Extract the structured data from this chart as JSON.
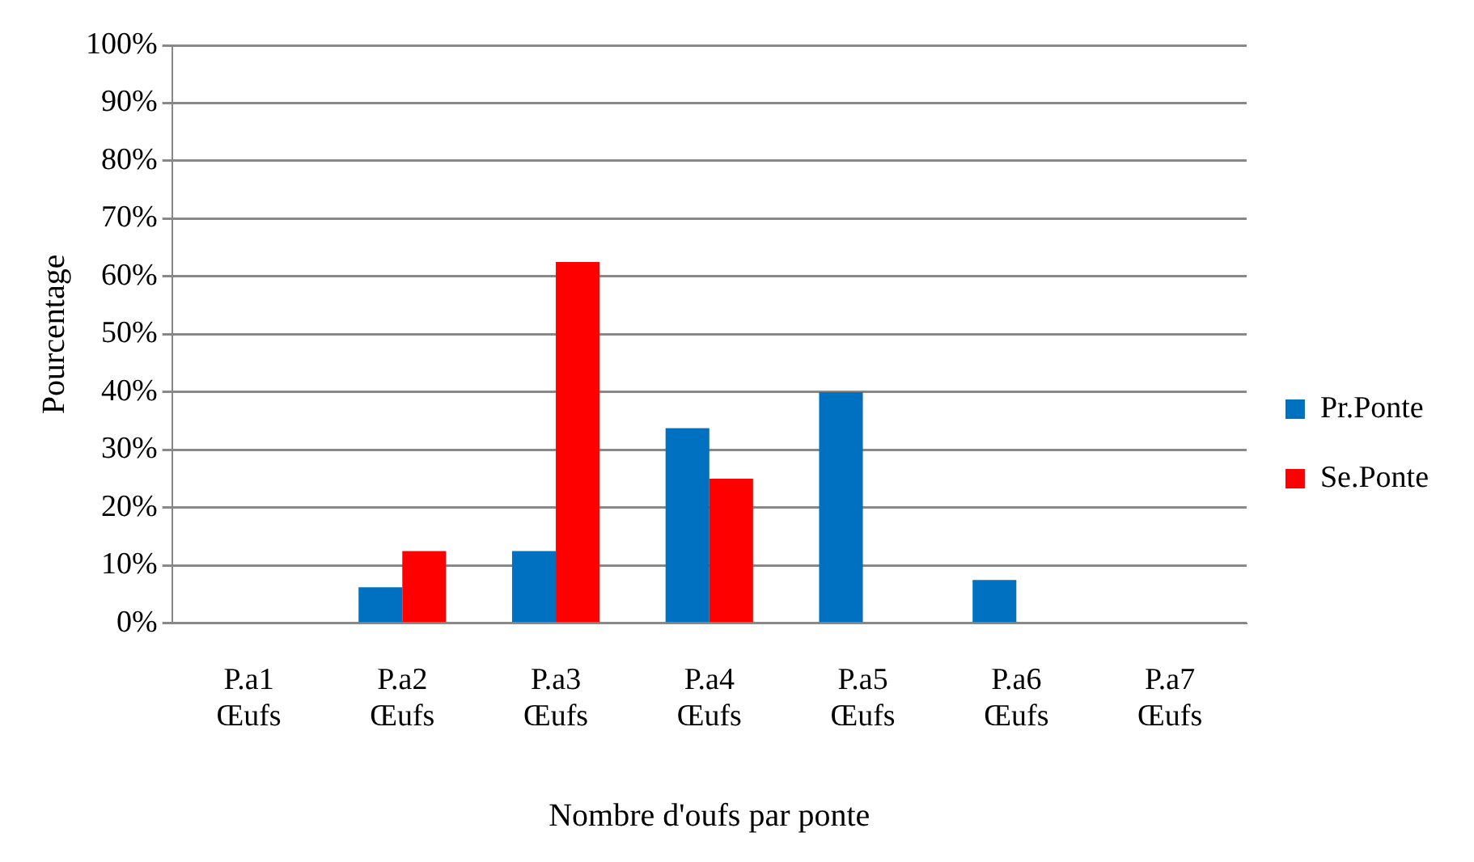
{
  "chart_data": {
    "type": "bar",
    "xlabel": "Nombre d'oufs par ponte",
    "ylabel": "Pourcentage",
    "categories": [
      "P.a1 Œufs",
      "P.a2 Œufs",
      "P.a3 Œufs",
      "P.a4 Œufs",
      "P.a5 Œufs",
      "P.a6 Œufs",
      "P.a7 Œufs"
    ],
    "series": [
      {
        "name": "Pr.Ponte",
        "color": "#0070c0",
        "values": [
          0,
          6.25,
          12.5,
          33.75,
          40,
          7.5,
          0
        ]
      },
      {
        "name": "Se.Ponte",
        "color": "#ff0000",
        "values": [
          0,
          12.5,
          62.5,
          25,
          0,
          0,
          0
        ]
      }
    ],
    "ylim": [
      0,
      100
    ],
    "yticks": [
      {
        "value": 0,
        "label": "0%"
      },
      {
        "value": 10,
        "label": "10%"
      },
      {
        "value": 20,
        "label": "20%"
      },
      {
        "value": 30,
        "label": "30%"
      },
      {
        "value": 40,
        "label": "40%"
      },
      {
        "value": 50,
        "label": "50%"
      },
      {
        "value": 60,
        "label": "60%"
      },
      {
        "value": 70,
        "label": "70%"
      },
      {
        "value": 80,
        "label": "80%"
      },
      {
        "value": 90,
        "label": "90%"
      },
      {
        "value": 100,
        "label": "100%"
      }
    ],
    "grid": "y",
    "legend": "right"
  }
}
